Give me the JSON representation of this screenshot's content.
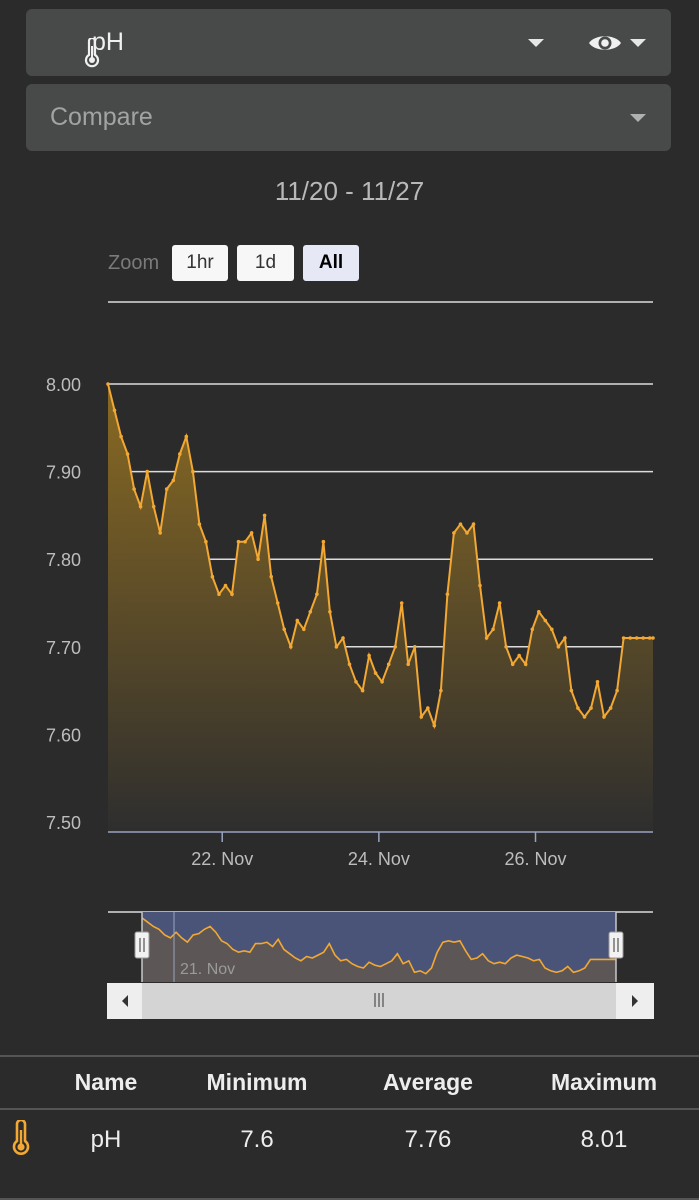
{
  "metric_select": {
    "label": "pH",
    "icon": "thermometer-icon",
    "visibility_icon": "eye-icon"
  },
  "compare_select": {
    "placeholder": "Compare"
  },
  "date_range": "11/20 - 11/27",
  "zoom": {
    "label": "Zoom",
    "buttons": [
      "1hr",
      "1d",
      "All"
    ],
    "active": "All"
  },
  "navigator": {
    "label": "21. Nov"
  },
  "stats_table": {
    "headers": [
      "Name",
      "Minimum",
      "Average",
      "Maximum"
    ],
    "rows": [
      {
        "icon": "thermometer-icon",
        "name": "pH",
        "min": "7.6",
        "avg": "7.76",
        "max": "8.01"
      }
    ]
  },
  "colors": {
    "background": "#2b2b2b",
    "series": "#f2a833",
    "control": "#474a48",
    "navigator_mask": "#4a5478"
  },
  "chart_data": {
    "type": "area",
    "title": "",
    "xlabel": "",
    "ylabel": "",
    "ylim": [
      7.5,
      8.05
    ],
    "y_ticks": [
      "7.50",
      "7.60",
      "7.70",
      "7.80",
      "7.90",
      "8.00"
    ],
    "x_ticks": [
      "22. Nov",
      "24. Nov",
      "26. Nov"
    ],
    "xlim": [
      "2023-11-20T13:00",
      "2023-11-27T12:00"
    ],
    "grid": true,
    "legend": "none",
    "series": [
      {
        "x": [
          "2023-11-20T13:00",
          "2023-11-20T15:00",
          "2023-11-20T17:00",
          "2023-11-20T19:00",
          "2023-11-20T21:00",
          "2023-11-20T23:00",
          "2023-11-21T01:00",
          "2023-11-21T03:00",
          "2023-11-21T05:00",
          "2023-11-21T07:00",
          "2023-11-21T09:00",
          "2023-11-21T11:00",
          "2023-11-21T13:00",
          "2023-11-21T15:00",
          "2023-11-21T17:00",
          "2023-11-21T19:00",
          "2023-11-21T21:00",
          "2023-11-21T23:00",
          "2023-11-22T01:00",
          "2023-11-22T03:00",
          "2023-11-22T05:00",
          "2023-11-22T07:00",
          "2023-11-22T09:00",
          "2023-11-22T11:00",
          "2023-11-22T13:00",
          "2023-11-22T15:00",
          "2023-11-22T17:00",
          "2023-11-22T19:00",
          "2023-11-22T21:00",
          "2023-11-22T23:00",
          "2023-11-23T01:00",
          "2023-11-23T03:00",
          "2023-11-23T05:00",
          "2023-11-23T07:00",
          "2023-11-23T09:00",
          "2023-11-23T11:00",
          "2023-11-23T13:00",
          "2023-11-23T15:00",
          "2023-11-23T17:00",
          "2023-11-23T19:00",
          "2023-11-23T21:00",
          "2023-11-23T23:00",
          "2023-11-24T01:00",
          "2023-11-24T03:00",
          "2023-11-24T05:00",
          "2023-11-24T07:00",
          "2023-11-24T09:00",
          "2023-11-24T11:00",
          "2023-11-24T13:00",
          "2023-11-24T15:00",
          "2023-11-24T17:00",
          "2023-11-24T19:00",
          "2023-11-24T21:00",
          "2023-11-24T23:00",
          "2023-11-25T01:00",
          "2023-11-25T03:00",
          "2023-11-25T05:00",
          "2023-11-25T07:00",
          "2023-11-25T09:00",
          "2023-11-25T11:00",
          "2023-11-25T13:00",
          "2023-11-25T15:00",
          "2023-11-25T17:00",
          "2023-11-25T19:00",
          "2023-11-25T21:00",
          "2023-11-25T23:00",
          "2023-11-26T01:00",
          "2023-11-26T03:00",
          "2023-11-26T05:00",
          "2023-11-26T07:00",
          "2023-11-26T09:00",
          "2023-11-26T11:00",
          "2023-11-26T13:00",
          "2023-11-26T15:00",
          "2023-11-26T17:00",
          "2023-11-26T19:00",
          "2023-11-26T21:00",
          "2023-11-26T23:00",
          "2023-11-27T01:00",
          "2023-11-27T03:00",
          "2023-11-27T05:00",
          "2023-11-27T07:00",
          "2023-11-27T09:00",
          "2023-11-27T11:00",
          "2023-11-27T12:00"
        ],
        "y": [
          8.0,
          7.97,
          7.94,
          7.92,
          7.88,
          7.86,
          7.9,
          7.86,
          7.83,
          7.88,
          7.89,
          7.92,
          7.94,
          7.9,
          7.84,
          7.82,
          7.78,
          7.76,
          7.77,
          7.76,
          7.82,
          7.82,
          7.83,
          7.8,
          7.85,
          7.78,
          7.75,
          7.72,
          7.7,
          7.73,
          7.72,
          7.74,
          7.76,
          7.82,
          7.74,
          7.7,
          7.71,
          7.68,
          7.66,
          7.65,
          7.69,
          7.67,
          7.66,
          7.68,
          7.7,
          7.75,
          7.68,
          7.7,
          7.62,
          7.63,
          7.61,
          7.65,
          7.76,
          7.83,
          7.84,
          7.83,
          7.84,
          7.77,
          7.71,
          7.72,
          7.75,
          7.7,
          7.68,
          7.69,
          7.68,
          7.72,
          7.74,
          7.73,
          7.72,
          7.7,
          7.71,
          7.65,
          7.63,
          7.62,
          7.63,
          7.66,
          7.62,
          7.63,
          7.65,
          7.71,
          7.71,
          7.71,
          7.71,
          7.71,
          7.71
        ]
      }
    ]
  }
}
